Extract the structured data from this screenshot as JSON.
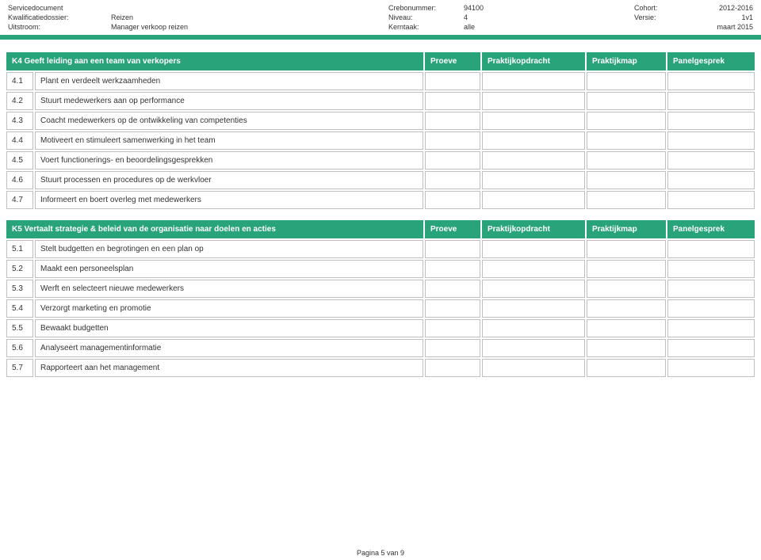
{
  "colors": {
    "accent": "#29a37a",
    "header_bg": "#29a37a",
    "header_text": "#ffffff",
    "cell_border": "#bfbfbf",
    "text": "#333333"
  },
  "meta": {
    "left": {
      "servicedocument_label": "Servicedocument",
      "servicedocument_value": "",
      "kwalificatiedossier_label": "Kwalificatiedossier:",
      "kwalificatiedossier_value": "Reizen",
      "uitstroom_label": "Uitstroom:",
      "uitstroom_value": "Manager verkoop reizen"
    },
    "mid": {
      "crebonummer_label": "Crebonummer:",
      "crebonummer_value": "94100",
      "niveau_label": "Niveau:",
      "niveau_value": "4",
      "kerntaak_label": "Kerntaak:",
      "kerntaak_value": "alle"
    },
    "right": {
      "cohort_label": "Cohort:",
      "cohort_value": "2012-2016",
      "versie_label": "Versie:",
      "versie_value": "1v1",
      "date_value": "maart 2015"
    }
  },
  "columns": {
    "proeve": "Proeve",
    "praktijkopdracht": "Praktijkopdracht",
    "praktijkmap": "Praktijkmap",
    "panelgesprek": "Panelgesprek"
  },
  "section_k4": {
    "title": "K4 Geeft leiding aan een team van verkopers",
    "rows": [
      {
        "num": "4.1",
        "desc": "Plant en verdeelt werkzaamheden"
      },
      {
        "num": "4.2",
        "desc": "Stuurt medewerkers aan op performance"
      },
      {
        "num": "4.3",
        "desc": "Coacht medewerkers op de ontwikkeling van competenties"
      },
      {
        "num": "4.4",
        "desc": "Motiveert en stimuleert samenwerking in het team"
      },
      {
        "num": "4.5",
        "desc": "Voert functionerings- en beoordelingsgesprekken"
      },
      {
        "num": "4.6",
        "desc": "Stuurt processen en procedures op de werkvloer"
      },
      {
        "num": "4.7",
        "desc": "Informeert en boert overleg met medewerkers"
      }
    ]
  },
  "section_k5": {
    "title": "K5 Vertaalt strategie & beleid van de organisatie naar doelen en acties",
    "rows": [
      {
        "num": "5.1",
        "desc": "Stelt budgetten en begrotingen en een plan op"
      },
      {
        "num": "5.2",
        "desc": "Maakt een personeelsplan"
      },
      {
        "num": "5.3",
        "desc": "Werft en selecteert nieuwe medewerkers"
      },
      {
        "num": "5.4",
        "desc": "Verzorgt marketing en promotie"
      },
      {
        "num": "5.5",
        "desc": "Bewaakt budgetten"
      },
      {
        "num": "5.6",
        "desc": "Analyseert managementinformatie"
      },
      {
        "num": "5.7",
        "desc": "Rapporteert aan het management"
      }
    ]
  },
  "footer": {
    "page_text": "Pagina 5 van 9"
  }
}
